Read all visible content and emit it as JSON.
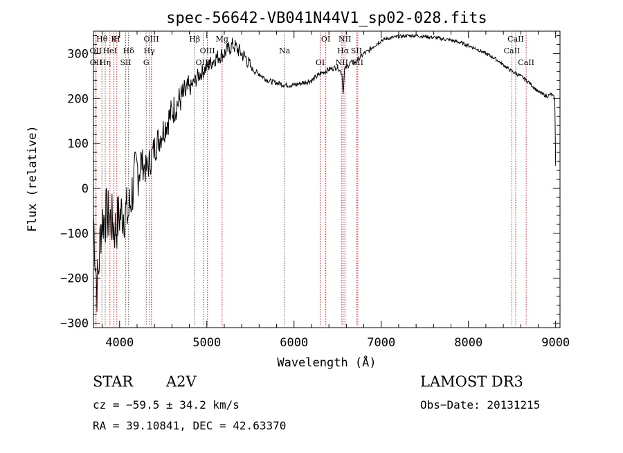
{
  "chart_data": {
    "type": "line",
    "title": "spec-56642-VB041N44V1_sp02-028.fits",
    "xlabel": "Wavelength (Å)",
    "ylabel": "Flux (relative)",
    "xlim": [
      3700,
      9050
    ],
    "ylim": [
      -310,
      350
    ],
    "xticks": [
      4000,
      5000,
      6000,
      7000,
      8000,
      9000
    ],
    "xtick_labels": [
      "4000",
      "5000",
      "6000",
      "7000",
      "8000",
      "9000"
    ],
    "yticks": [
      -300,
      -200,
      -100,
      0,
      100,
      200,
      300
    ],
    "ytick_labels": [
      "−300",
      "−200",
      "−100",
      "0",
      "100",
      "200",
      "300"
    ],
    "series": [
      {
        "name": "flux",
        "color": "#000000",
        "x": [
          3700,
          3720,
          3740,
          3760,
          3780,
          3800,
          3850,
          3900,
          3950,
          4000,
          4050,
          4100,
          4150,
          4200,
          4250,
          4300,
          4350,
          4400,
          4500,
          4600,
          4700,
          4800,
          4900,
          5000,
          5100,
          5200,
          5300,
          5350,
          5400,
          5450,
          5500,
          5550,
          5600,
          5700,
          5800,
          5900,
          6000,
          6100,
          6200,
          6300,
          6400,
          6500,
          6550,
          6563,
          6580,
          6650,
          6700,
          6750,
          6800,
          6850,
          6900,
          7000,
          7100,
          7200,
          7300,
          7400,
          7500,
          7600,
          7700,
          7800,
          7900,
          8000,
          8100,
          8200,
          8300,
          8400,
          8500,
          8600,
          8700,
          8800,
          8900,
          8950,
          8990,
          9000
        ],
        "y": [
          -60,
          -150,
          -220,
          -180,
          -100,
          -70,
          -60,
          -70,
          -90,
          -60,
          -50,
          -60,
          0,
          40,
          60,
          40,
          60,
          90,
          130,
          170,
          200,
          220,
          250,
          270,
          290,
          300,
          320,
          310,
          300,
          290,
          270,
          260,
          255,
          240,
          235,
          230,
          230,
          235,
          240,
          255,
          265,
          270,
          255,
          210,
          265,
          280,
          280,
          290,
          300,
          305,
          315,
          330,
          335,
          338,
          340,
          340,
          338,
          336,
          333,
          330,
          325,
          318,
          310,
          300,
          290,
          275,
          260,
          250,
          235,
          215,
          205,
          210,
          200,
          50
        ]
      }
    ],
    "spectral_lines": [
      {
        "label": "Hθ",
        "x": 3797
      },
      {
        "label": "OII",
        "x": 3727
      },
      {
        "label": "OII",
        "x": 3729
      },
      {
        "label": "K",
        "x": 3934
      },
      {
        "label": "HeI",
        "x": 3889
      },
      {
        "label": "Hη",
        "x": 3835
      },
      {
        "label": "H",
        "x": 3968
      },
      {
        "label": "Hδ",
        "x": 4102
      },
      {
        "label": "SII",
        "x": 4070
      },
      {
        "label": "OIII",
        "x": 4363
      },
      {
        "label": "Hγ",
        "x": 4340
      },
      {
        "label": "G",
        "x": 4305
      },
      {
        "label": "Hβ",
        "x": 4861
      },
      {
        "label": "OIII",
        "x": 5007
      },
      {
        "label": "OIII",
        "x": 4959
      },
      {
        "label": "Mg",
        "x": 5175
      },
      {
        "label": "Na",
        "x": 5893
      },
      {
        "label": "OI",
        "x": 6300
      },
      {
        "label": "OI",
        "x": 6364
      },
      {
        "label": "Hα",
        "x": 6563
      },
      {
        "label": "NII",
        "x": 6548
      },
      {
        "label": "NII",
        "x": 6583
      },
      {
        "label": "SII",
        "x": 6716
      },
      {
        "label": "SII",
        "x": 6731
      },
      {
        "label": "CaII",
        "x": 8542
      },
      {
        "label": "CaII",
        "x": 8498
      },
      {
        "label": "CaII",
        "x": 8662
      }
    ]
  },
  "info": {
    "object_class": "STAR",
    "subclass": "A2V",
    "survey": "LAMOST DR3",
    "cz": "cz = −59.5 ± 34.2 km/s",
    "obs_date": "Obs−Date: 20131215",
    "coords": "RA =  39.10841, DEC =  42.63370"
  },
  "colors": {
    "line_marker": "#cc2222",
    "spectrum": "#000000",
    "axes": "#000000"
  }
}
